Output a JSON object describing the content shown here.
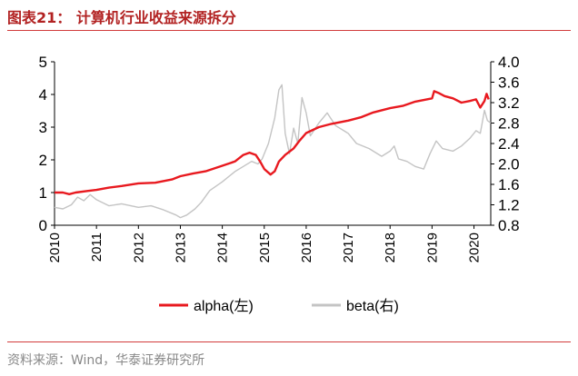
{
  "header": {
    "title": "图表21： 计算机行业收益来源拆分"
  },
  "footer": {
    "source": "资料来源：Wind，华泰证券研究所"
  },
  "colors": {
    "alpha": "#e8191f",
    "beta": "#c4c4c4",
    "rule": "#d23c3c",
    "title": "#b22222",
    "axis": "#000000"
  },
  "chart_data": {
    "type": "line",
    "title": "",
    "xlabel": "",
    "ylabel": "",
    "x_ticks": [
      "2010",
      "2011",
      "2012",
      "2013",
      "2014",
      "2015",
      "2016",
      "2017",
      "2018",
      "2019",
      "2020"
    ],
    "x_range": [
      2010,
      2020.4
    ],
    "left_axis": {
      "ticks": [
        "0",
        "1",
        "2",
        "3",
        "4",
        "5"
      ],
      "range": [
        0,
        5
      ]
    },
    "right_axis": {
      "ticks": [
        "0.8",
        "1.2",
        "1.6",
        "2.0",
        "2.4",
        "2.8",
        "3.2",
        "3.6",
        "4.0"
      ],
      "range": [
        0.8,
        4.0
      ]
    },
    "legend_position": "bottom",
    "grid": false,
    "series": [
      {
        "name": "alpha(左)",
        "axis": "left",
        "points": [
          [
            2010.0,
            1.0
          ],
          [
            2010.2,
            1.0
          ],
          [
            2010.35,
            0.95
          ],
          [
            2010.5,
            1.0
          ],
          [
            2010.8,
            1.05
          ],
          [
            2011.0,
            1.08
          ],
          [
            2011.3,
            1.15
          ],
          [
            2011.6,
            1.2
          ],
          [
            2012.0,
            1.28
          ],
          [
            2012.4,
            1.3
          ],
          [
            2012.8,
            1.4
          ],
          [
            2013.0,
            1.5
          ],
          [
            2013.3,
            1.58
          ],
          [
            2013.6,
            1.65
          ],
          [
            2014.0,
            1.82
          ],
          [
            2014.3,
            1.95
          ],
          [
            2014.5,
            2.15
          ],
          [
            2014.65,
            2.22
          ],
          [
            2014.8,
            2.15
          ],
          [
            2014.9,
            1.95
          ],
          [
            2015.0,
            1.72
          ],
          [
            2015.15,
            1.55
          ],
          [
            2015.25,
            1.65
          ],
          [
            2015.35,
            1.95
          ],
          [
            2015.5,
            2.15
          ],
          [
            2015.7,
            2.35
          ],
          [
            2015.85,
            2.6
          ],
          [
            2016.0,
            2.82
          ],
          [
            2016.3,
            3.0
          ],
          [
            2016.6,
            3.1
          ],
          [
            2017.0,
            3.2
          ],
          [
            2017.3,
            3.3
          ],
          [
            2017.6,
            3.45
          ],
          [
            2018.0,
            3.58
          ],
          [
            2018.3,
            3.65
          ],
          [
            2018.6,
            3.78
          ],
          [
            2019.0,
            3.88
          ],
          [
            2019.05,
            4.1
          ],
          [
            2019.15,
            4.05
          ],
          [
            2019.3,
            3.95
          ],
          [
            2019.5,
            3.88
          ],
          [
            2019.7,
            3.75
          ],
          [
            2019.9,
            3.8
          ],
          [
            2020.05,
            3.85
          ],
          [
            2020.15,
            3.6
          ],
          [
            2020.25,
            3.8
          ],
          [
            2020.3,
            4.02
          ],
          [
            2020.35,
            3.85
          ]
        ]
      },
      {
        "name": "beta(右)",
        "axis": "right",
        "points": [
          [
            2010.0,
            1.15
          ],
          [
            2010.2,
            1.12
          ],
          [
            2010.4,
            1.2
          ],
          [
            2010.55,
            1.35
          ],
          [
            2010.7,
            1.28
          ],
          [
            2010.85,
            1.4
          ],
          [
            2011.0,
            1.3
          ],
          [
            2011.3,
            1.18
          ],
          [
            2011.6,
            1.22
          ],
          [
            2012.0,
            1.15
          ],
          [
            2012.3,
            1.18
          ],
          [
            2012.6,
            1.1
          ],
          [
            2012.9,
            1.0
          ],
          [
            2013.0,
            0.95
          ],
          [
            2013.15,
            1.0
          ],
          [
            2013.35,
            1.12
          ],
          [
            2013.5,
            1.25
          ],
          [
            2013.7,
            1.48
          ],
          [
            2014.0,
            1.65
          ],
          [
            2014.3,
            1.85
          ],
          [
            2014.5,
            1.95
          ],
          [
            2014.7,
            2.05
          ],
          [
            2014.85,
            2.0
          ],
          [
            2014.95,
            2.1
          ],
          [
            2015.1,
            2.4
          ],
          [
            2015.25,
            2.9
          ],
          [
            2015.35,
            3.45
          ],
          [
            2015.42,
            3.55
          ],
          [
            2015.5,
            2.6
          ],
          [
            2015.6,
            2.2
          ],
          [
            2015.7,
            2.7
          ],
          [
            2015.8,
            2.4
          ],
          [
            2015.9,
            3.3
          ],
          [
            2016.0,
            3.0
          ],
          [
            2016.1,
            2.55
          ],
          [
            2016.3,
            2.8
          ],
          [
            2016.5,
            3.0
          ],
          [
            2016.7,
            2.75
          ],
          [
            2017.0,
            2.6
          ],
          [
            2017.2,
            2.4
          ],
          [
            2017.5,
            2.3
          ],
          [
            2017.8,
            2.15
          ],
          [
            2018.0,
            2.25
          ],
          [
            2018.1,
            2.35
          ],
          [
            2018.2,
            2.1
          ],
          [
            2018.4,
            2.05
          ],
          [
            2018.6,
            1.95
          ],
          [
            2018.8,
            1.9
          ],
          [
            2018.95,
            2.2
          ],
          [
            2019.1,
            2.45
          ],
          [
            2019.25,
            2.3
          ],
          [
            2019.5,
            2.25
          ],
          [
            2019.7,
            2.35
          ],
          [
            2019.9,
            2.5
          ],
          [
            2020.05,
            2.65
          ],
          [
            2020.15,
            2.6
          ],
          [
            2020.25,
            3.05
          ],
          [
            2020.32,
            2.85
          ],
          [
            2020.4,
            2.8
          ]
        ]
      }
    ]
  }
}
